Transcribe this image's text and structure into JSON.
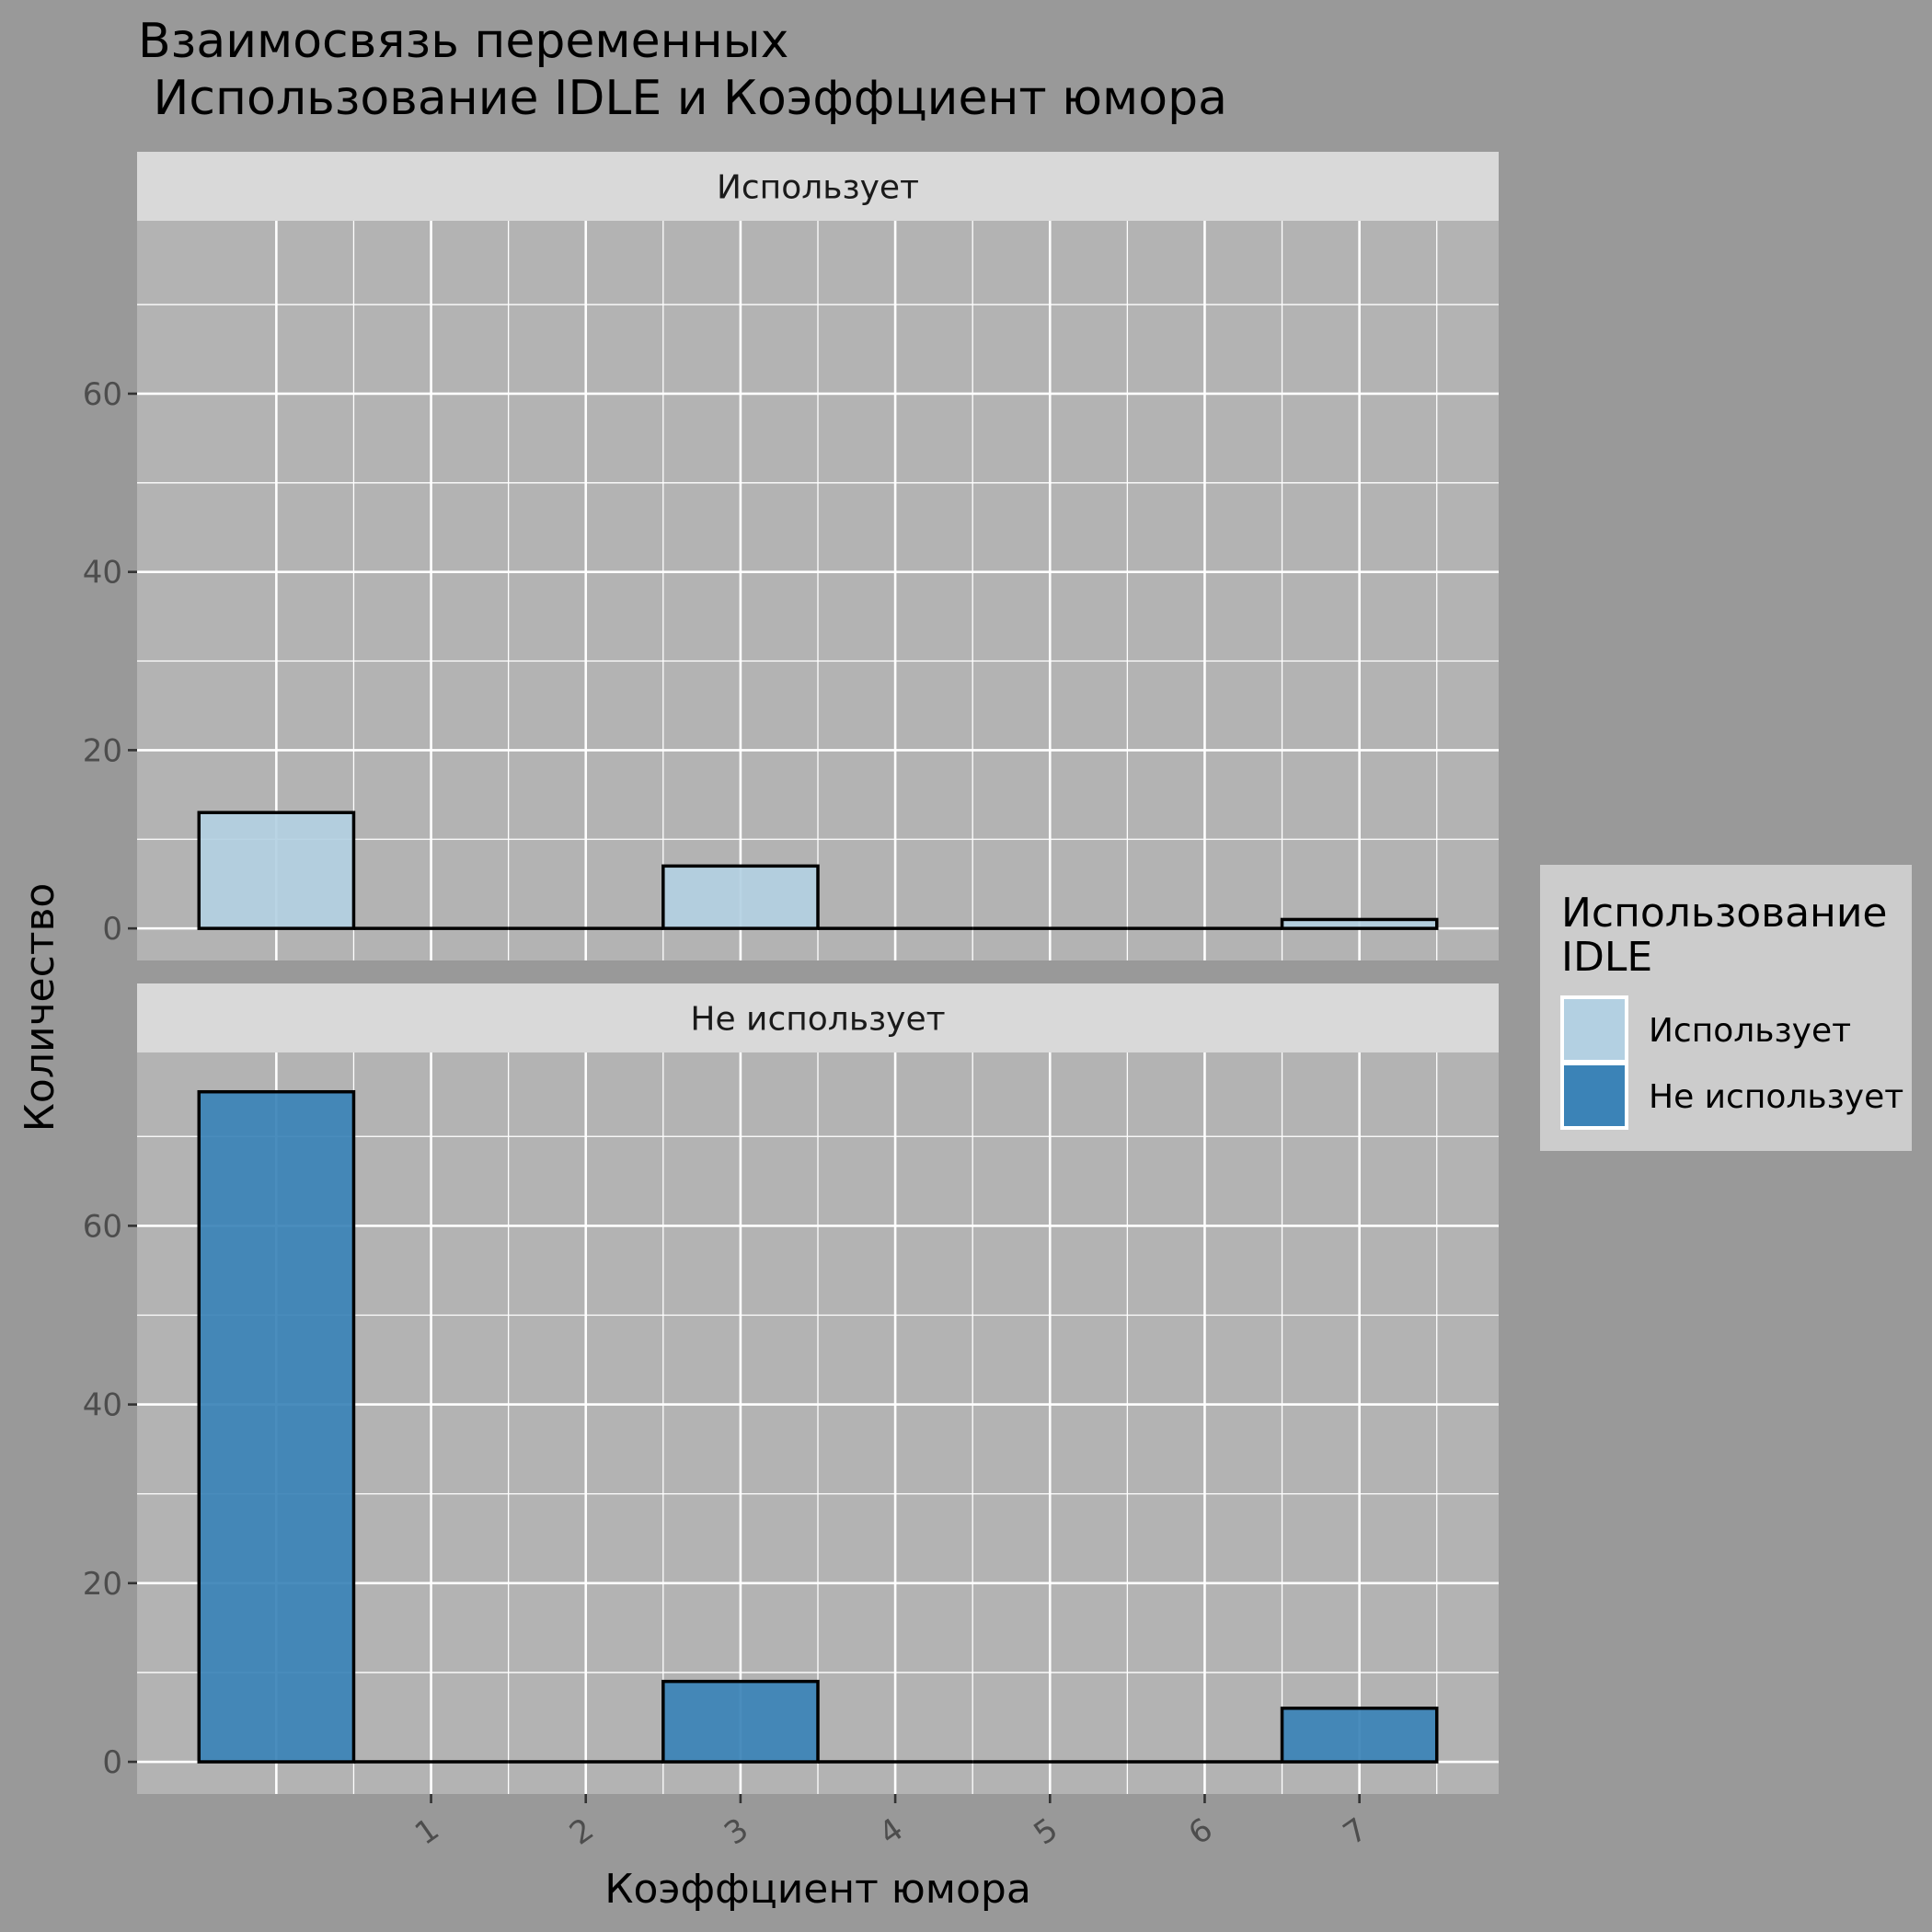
{
  "chart_data": {
    "type": "bar",
    "title_line1": "Взаимосвязь переменных",
    "title_line2": " Использование IDLE и Коэффциент юмора",
    "xlabel": "Коэффциент юмора",
    "ylabel": "Количество",
    "x_ticks": [
      "1",
      "2",
      "3",
      "4",
      "5",
      "6",
      "7"
    ],
    "x_range": [
      -0.9,
      7.9
    ],
    "y_ticks": [
      0,
      20,
      40,
      60
    ],
    "ylim": [
      -3.6,
      79.4
    ],
    "grid": true,
    "legend": {
      "title_line1": "Использование",
      "title_line2": "IDLE",
      "placement": "right",
      "entries": [
        "Использует",
        "Не использует"
      ]
    },
    "colors": {
      "Использует": "#b3d0e2",
      "Не использует": "#3b83b7",
      "panel_bg": "#b3b3b3",
      "strip_bg": "#d9d9d9",
      "page_bg": "#999999"
    },
    "panels": [
      {
        "label": "Использует",
        "series": "Использует",
        "bars": [
          {
            "x": 0,
            "value": 13
          },
          {
            "x": 1,
            "value": 0
          },
          {
            "x": 2,
            "value": 0
          },
          {
            "x": 3,
            "value": 7
          },
          {
            "x": 4,
            "value": 0
          },
          {
            "x": 5,
            "value": 0
          },
          {
            "x": 6,
            "value": 0
          },
          {
            "x": 7,
            "value": 1
          }
        ]
      },
      {
        "label": "Не использует",
        "series": "Не использует",
        "bars": [
          {
            "x": 0,
            "value": 75
          },
          {
            "x": 1,
            "value": 0
          },
          {
            "x": 2,
            "value": 0
          },
          {
            "x": 3,
            "value": 9
          },
          {
            "x": 4,
            "value": 0
          },
          {
            "x": 5,
            "value": 0
          },
          {
            "x": 6,
            "value": 0
          },
          {
            "x": 7,
            "value": 6
          }
        ]
      }
    ]
  }
}
